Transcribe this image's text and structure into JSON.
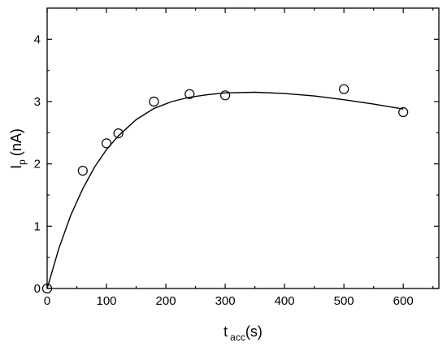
{
  "chart_data": {
    "type": "scatter",
    "xlabel": {
      "main": "t",
      "sub": "acc",
      "unit": "(s)"
    },
    "ylabel": {
      "main": "I",
      "sub": "p",
      "unit": "(nA)"
    },
    "xlim": [
      0,
      660
    ],
    "ylim": [
      0,
      4.5
    ],
    "xticks": [
      0,
      100,
      200,
      300,
      400,
      500,
      600
    ],
    "yticks": [
      0,
      1,
      2,
      3,
      4
    ],
    "grid": false,
    "series": [
      {
        "kind": "points",
        "marker": "open-circle",
        "x": [
          0,
          60,
          100,
          120,
          180,
          240,
          300,
          500,
          600
        ],
        "y": [
          0.0,
          1.89,
          2.33,
          2.49,
          3.0,
          3.12,
          3.1,
          3.2,
          2.83
        ]
      },
      {
        "kind": "fit-line",
        "x": [
          0,
          20,
          40,
          60,
          80,
          100,
          120,
          150,
          180,
          210,
          240,
          270,
          300,
          350,
          400,
          450,
          500,
          550,
          600
        ],
        "y": [
          0.0,
          0.65,
          1.18,
          1.6,
          1.95,
          2.23,
          2.45,
          2.71,
          2.89,
          3.0,
          3.07,
          3.11,
          3.14,
          3.15,
          3.13,
          3.09,
          3.03,
          2.96,
          2.88
        ]
      }
    ]
  }
}
